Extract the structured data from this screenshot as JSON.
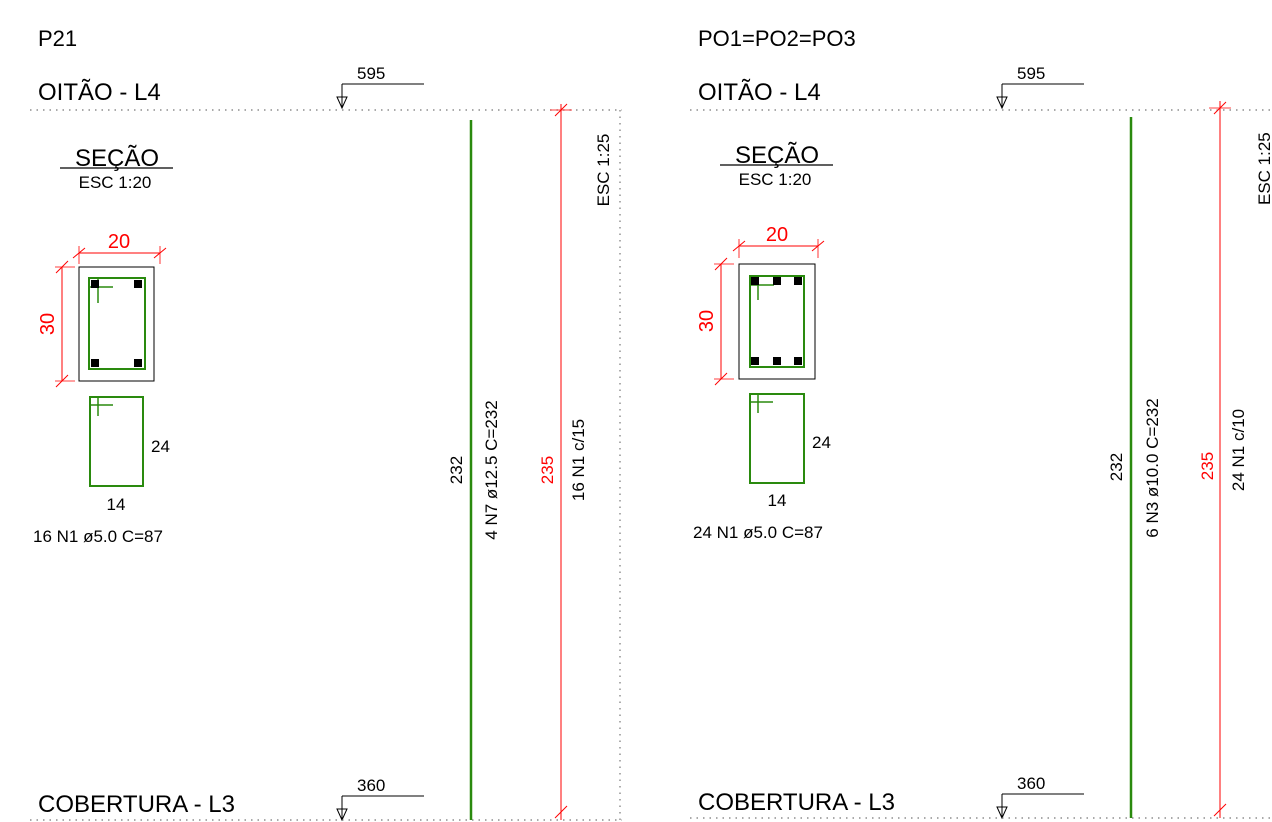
{
  "colors": {
    "concrete": "#000000",
    "rebar": "#2a8a0e",
    "dimension": "#ff0000",
    "level_line": "#777777"
  },
  "panels": [
    {
      "title": "P21",
      "top_level": {
        "label": "OITÃO - L4",
        "elevation": "595"
      },
      "bottom_level": {
        "label": "COBERTURA - L3",
        "elevation": "360"
      },
      "section": {
        "title": "SEÇÃO",
        "scale": "ESC 1:20",
        "width_dim": "20",
        "height_dim": "30",
        "bars_top": 2,
        "bars_bottom": 2
      },
      "stirrup": {
        "height": "24",
        "width": "14",
        "label": "16 N1 ø5.0 C=87"
      },
      "elevation_view": {
        "scale": "ESC 1:25",
        "long_bar_length": "232",
        "long_bar_label": "4 N7 ø12.5 C=232",
        "dim_height": "235",
        "stirrup_spacing": "16 N1 c/15"
      }
    },
    {
      "title": "PO1=PO2=PO3",
      "top_level": {
        "label": "OITÃO - L4",
        "elevation": "595"
      },
      "bottom_level": {
        "label": "COBERTURA - L3",
        "elevation": "360"
      },
      "section": {
        "title": "SEÇÃO",
        "scale": "ESC 1:20",
        "width_dim": "20",
        "height_dim": "30",
        "bars_top": 3,
        "bars_bottom": 3
      },
      "stirrup": {
        "height": "24",
        "width": "14",
        "label": "24 N1 ø5.0 C=87"
      },
      "elevation_view": {
        "scale": "ESC 1:25",
        "long_bar_length": "232",
        "long_bar_label": "6 N3 ø10.0 C=232",
        "dim_height": "235",
        "stirrup_spacing": "24 N1 c/10"
      }
    }
  ]
}
